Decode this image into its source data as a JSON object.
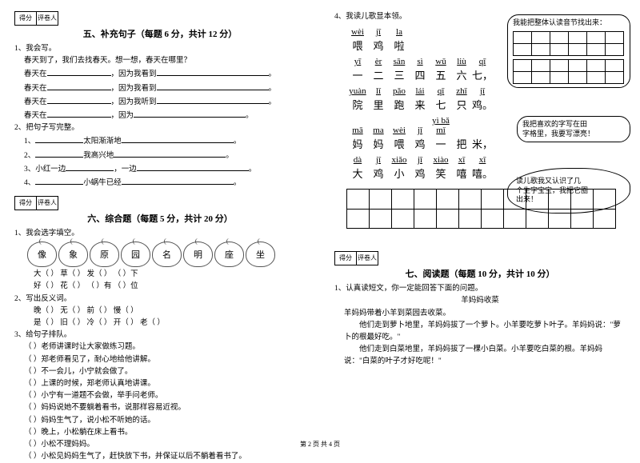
{
  "score_labels": {
    "score": "得分",
    "grader": "评卷人"
  },
  "sec5": {
    "title": "五、补充句子（每题 6 分，共计 12 分）",
    "q1_head": "1、我会写。",
    "q1_intro": "春天到了，我们去找春天。想一想，春天在哪里？",
    "q1_lines": [
      {
        "a": "春天在",
        "b": "，因为我看到",
        "c": "。"
      },
      {
        "a": "春天在",
        "b": "，因为我看到",
        "c": "。"
      },
      {
        "a": "春天在",
        "b": "，因为我听到",
        "c": "。"
      },
      {
        "a": "春天在",
        "b": "，因为",
        "c": "。"
      }
    ],
    "q2_head": "2、把句子写完整。",
    "q2_lines": [
      {
        "n": "1、",
        "a": "太阳渐渐地",
        "b": "。"
      },
      {
        "n": "2、",
        "a": "我高兴地",
        "b": "。"
      },
      {
        "n": "3、小红一边",
        "a": "，一边",
        "b": "。"
      },
      {
        "n": "4、",
        "a": "小蜗牛已经",
        "b": "。"
      }
    ]
  },
  "sec6": {
    "title": "六、综合题（每题 5 分，共计 20 分）",
    "q1_head": "1、我会选字填空。",
    "apples": [
      "像",
      "象",
      "原",
      "园",
      "名",
      "明",
      "座",
      "坐"
    ],
    "q1_row1_labels": [
      "大（    ）",
      "草（    ）",
      "发（    ）",
      "（    ）下"
    ],
    "q1_row2_labels": [
      "好（    ）",
      "花（    ）",
      "（    ）有",
      "（    ）位"
    ],
    "q2_head": "2、写出反义词。",
    "q2_row1": "晚（    ）    无（    ）    前（    ）    慢（    ）",
    "q2_row2": "是（    ）    旧（    ）    冷（    ）    开（    ）    老（    ）",
    "q3_head": "3、给句子排队。",
    "q3_lines": [
      "（    ）老师讲课时让大家做练习题。",
      "（    ）郑老师看见了，耐心地给他讲解。",
      "（    ）不一会儿，小宁就会做了。",
      "（    ）上课的时候，郑老师认真地讲课。",
      "（    ）小宁有一道题不会做，举手问老师。",
      "（    ）妈妈说她不要躺着看书，说那样容易近视。",
      "（    ）妈妈生气了，说小松不听她的话。",
      "（    ）晚上，小松躺在床上看书。",
      "（    ）小松不理妈妈。",
      "（    ）小松见妈妈生气了，赶快放下书，并保证以后不躺着看书了。"
    ]
  },
  "right_q4": {
    "head": "4、我读儿歌显本领。",
    "rows": [
      {
        "py": [
          "wèi",
          "jī",
          "la",
          "",
          "",
          "",
          ""
        ],
        "ch": [
          "喂",
          "鸡",
          "啦",
          "",
          "",
          "",
          ""
        ]
      },
      {
        "py": [
          "yī",
          "èr",
          "sān",
          "sì",
          "wǔ",
          "liù",
          "qī"
        ],
        "ch": [
          "一",
          "二",
          "三",
          "四",
          "五",
          "六",
          "七，"
        ]
      },
      {
        "py": [
          "yuàn",
          "lǐ",
          "pǎo",
          "lái",
          "qī",
          "zhī",
          "jī"
        ],
        "ch": [
          "院",
          "里",
          "跑",
          "来",
          "七",
          "只",
          "鸡。"
        ]
      },
      {
        "py": [
          "mā",
          "ma",
          "wèi",
          "jī",
          "yì bǎ mǐ",
          "",
          ""
        ],
        "ch": [
          "妈",
          "妈",
          "喂",
          "鸡",
          "一",
          "把",
          "米，"
        ]
      },
      {
        "py": [
          "dà",
          "jī",
          "xiǎo",
          "jī",
          "xiào",
          "xī",
          "xī"
        ],
        "ch": [
          "大",
          "鸡",
          "小",
          "鸡",
          "笑",
          "嘻",
          "嘻。"
        ]
      }
    ],
    "bubble1": "我能把整体认读音节找出来：",
    "bubble2": "我把喜欢的字写在田\n字格里，我要写漂亮！",
    "bubble3": "读儿歌我又认识了几\n个生字宝宝，我把它圈\n出来！"
  },
  "sec7": {
    "title": "七、阅读题（每题 10 分，共计 10 分）",
    "q1_head": "1、认真读短文，你一定能回答下面的问题。",
    "story_title": "羊妈妈收菜",
    "p1": "羊妈妈带着小羊到菜园去收菜。",
    "p2": "他们走到萝卜地里，羊妈妈拔了一个萝卜。小羊要吃萝卜叶子。羊妈妈说：\"萝卜的根最好吃。\"",
    "p3": "他们走到白菜地里，羊妈妈拔了一棵小白菜。小羊要吃白菜的根。羊妈妈说：\"白菜的叶子才好吃呢！\"",
    "footer": "第 2 页 共 4 页"
  }
}
